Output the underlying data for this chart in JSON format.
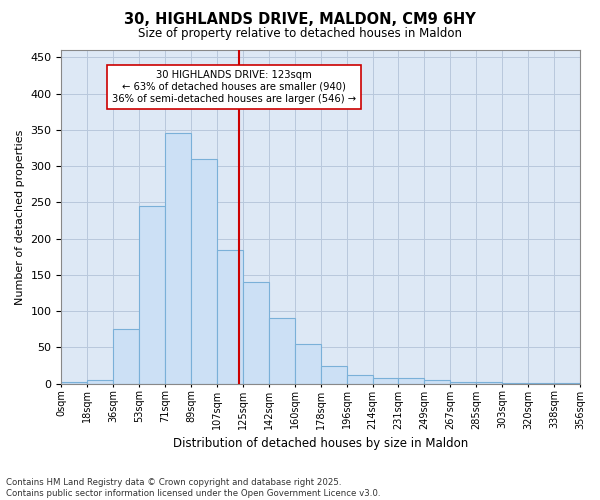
{
  "title": "30, HIGHLANDS DRIVE, MALDON, CM9 6HY",
  "subtitle": "Size of property relative to detached houses in Maldon",
  "xlabel": "Distribution of detached houses by size in Maldon",
  "ylabel": "Number of detached properties",
  "property_size": 123,
  "property_label": "30 HIGHLANDS DRIVE: 123sqm",
  "pct_smaller": 63,
  "count_smaller": 940,
  "pct_larger_semi": 36,
  "count_larger_semi": 546,
  "bin_labels": [
    "0sqm",
    "18sqm",
    "36sqm",
    "53sqm",
    "71sqm",
    "89sqm",
    "107sqm",
    "125sqm",
    "142sqm",
    "160sqm",
    "178sqm",
    "196sqm",
    "214sqm",
    "231sqm",
    "249sqm",
    "267sqm",
    "285sqm",
    "303sqm",
    "320sqm",
    "338sqm",
    "356sqm"
  ],
  "bar_heights": [
    2,
    5,
    75,
    245,
    345,
    310,
    185,
    140,
    90,
    55,
    25,
    12,
    8,
    8,
    5,
    3,
    2,
    1,
    1,
    1
  ],
  "bar_color": "#cce0f5",
  "bar_edge_color": "#7ab0d8",
  "vline_color": "#cc0000",
  "grid_color": "#b8c8dc",
  "bg_color": "#dde8f5",
  "annotation_box_color": "#cc0000",
  "ylim": [
    0,
    460
  ],
  "yticks": [
    0,
    50,
    100,
    150,
    200,
    250,
    300,
    350,
    400,
    450
  ],
  "footer": "Contains HM Land Registry data © Crown copyright and database right 2025.\nContains public sector information licensed under the Open Government Licence v3.0."
}
